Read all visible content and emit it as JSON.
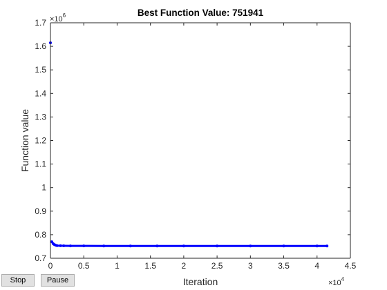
{
  "buttons": {
    "stop_label": "Stop",
    "pause_label": "Pause"
  },
  "colors": {
    "series": "#0000ff",
    "axes": "#262626",
    "title": "#000000"
  },
  "chart_data": {
    "type": "scatter",
    "title": "Best Function Value: 751941",
    "xlabel": "Iteration",
    "ylabel": "Function value",
    "xlim": [
      0,
      45000
    ],
    "ylim": [
      700000,
      1700000
    ],
    "x_ticks": [
      0,
      0.5,
      1,
      1.5,
      2,
      2.5,
      3,
      3.5,
      4,
      4.5
    ],
    "x_tick_labels": [
      "0",
      "0.5",
      "1",
      "1.5",
      "2",
      "2.5",
      "3",
      "3.5",
      "4",
      "4.5"
    ],
    "x_multiplier": {
      "base": "×10",
      "exponent": "4"
    },
    "y_ticks": [
      0.7,
      0.8,
      0.9,
      1,
      1.1,
      1.2,
      1.3,
      1.4,
      1.5,
      1.6,
      1.7
    ],
    "y_tick_labels": [
      "0.7",
      "0.8",
      "0.9",
      "1",
      "1.1",
      "1.2",
      "1.3",
      "1.4",
      "1.5",
      "1.6",
      "1.7"
    ],
    "y_multiplier": {
      "base": "×10",
      "exponent": "6"
    },
    "grid": false,
    "legend": "none",
    "series": [
      {
        "x": [
          0,
          200,
          400,
          600,
          800,
          1000,
          1500,
          2000,
          3000,
          5000,
          8000,
          12000,
          16000,
          20000,
          25000,
          30000,
          35000,
          40000,
          41500
        ],
        "y": [
          1615000,
          770000,
          762000,
          758000,
          755000,
          753500,
          753000,
          752600,
          752400,
          752300,
          752200,
          752150,
          752100,
          752050,
          752000,
          751990,
          751970,
          751950,
          751941
        ]
      }
    ]
  }
}
